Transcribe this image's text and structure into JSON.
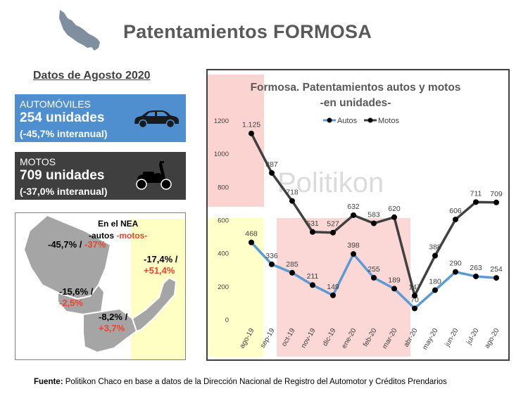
{
  "title": "Patentamientos FORMOSA",
  "subtitle": "Datos de Agosto 2020",
  "autos_box": {
    "category": "AUTOMÓVILES",
    "units": "254 unidades",
    "change": "(-45,7% interanual)"
  },
  "motos_box": {
    "category": "MOTOS",
    "units": "709 unidades",
    "change": "(-37,0% interanual)"
  },
  "nea": {
    "heading": "En el NEA",
    "legend_autos": "-autos ",
    "legend_motos": "-motos-",
    "regions": [
      {
        "autos": "-45,7% /",
        "motos": "-37%"
      },
      {
        "autos": "-15,6% /",
        "motos": "-2,5%"
      },
      {
        "autos": "-8,2% /",
        "motos": "+3,7%"
      },
      {
        "autos": "-17,4% /",
        "motos": "+51,4%"
      }
    ]
  },
  "watermark": "Politikon",
  "source_label": "Fuente:",
  "source_text": " Politikon Chaco en base a datos de la Dirección Nacional de Registro del Automotor y Créditos Prendarios",
  "colors": {
    "autos": "#5b9bd5",
    "motos": "#404040",
    "motos_highlight": "#e8452c",
    "map_fill": "#a5a5a5",
    "highlight_red": "#f9c6c3",
    "highlight_yellow": "#ffffc4"
  },
  "icons": [
    "formosa-map-icon",
    "car-icon",
    "scooter-icon",
    "nea-map-icon"
  ],
  "chart_data": {
    "type": "line",
    "title": "Formosa. Patentamientos autos y motos",
    "subtitle": "-en unidades-",
    "categories": [
      "ago-19",
      "sep-19",
      "oct-19",
      "nov-19",
      "dic-19",
      "ene-20",
      "feb-20",
      "mar-20",
      "abr-20",
      "may-20",
      "jun-20",
      "jul-20",
      "ago-20"
    ],
    "series": [
      {
        "name": "Autos",
        "color": "#5b9bd5",
        "values": [
          468,
          336,
          285,
          211,
          149,
          398,
          255,
          189,
          70,
          180,
          290,
          263,
          254
        ],
        "labels": [
          "468",
          "336",
          "285",
          "211",
          "149",
          "398",
          "255",
          "189",
          "70",
          "180",
          "290",
          "263",
          "254"
        ]
      },
      {
        "name": "Motos",
        "color": "#404040",
        "values": [
          1125,
          887,
          718,
          531,
          527,
          632,
          583,
          620,
          147,
          388,
          606,
          711,
          709
        ],
        "labels": [
          "1.125",
          "887",
          "718",
          "531",
          "527",
          "632",
          "583",
          "620",
          "147",
          "388",
          "606",
          "711",
          "709"
        ]
      }
    ],
    "ylim": [
      0,
      1200
    ],
    "yticks": [
      "0",
      "200",
      "400",
      "600",
      "800",
      "1000",
      "1200"
    ],
    "legend": "top-right",
    "grid": false
  }
}
